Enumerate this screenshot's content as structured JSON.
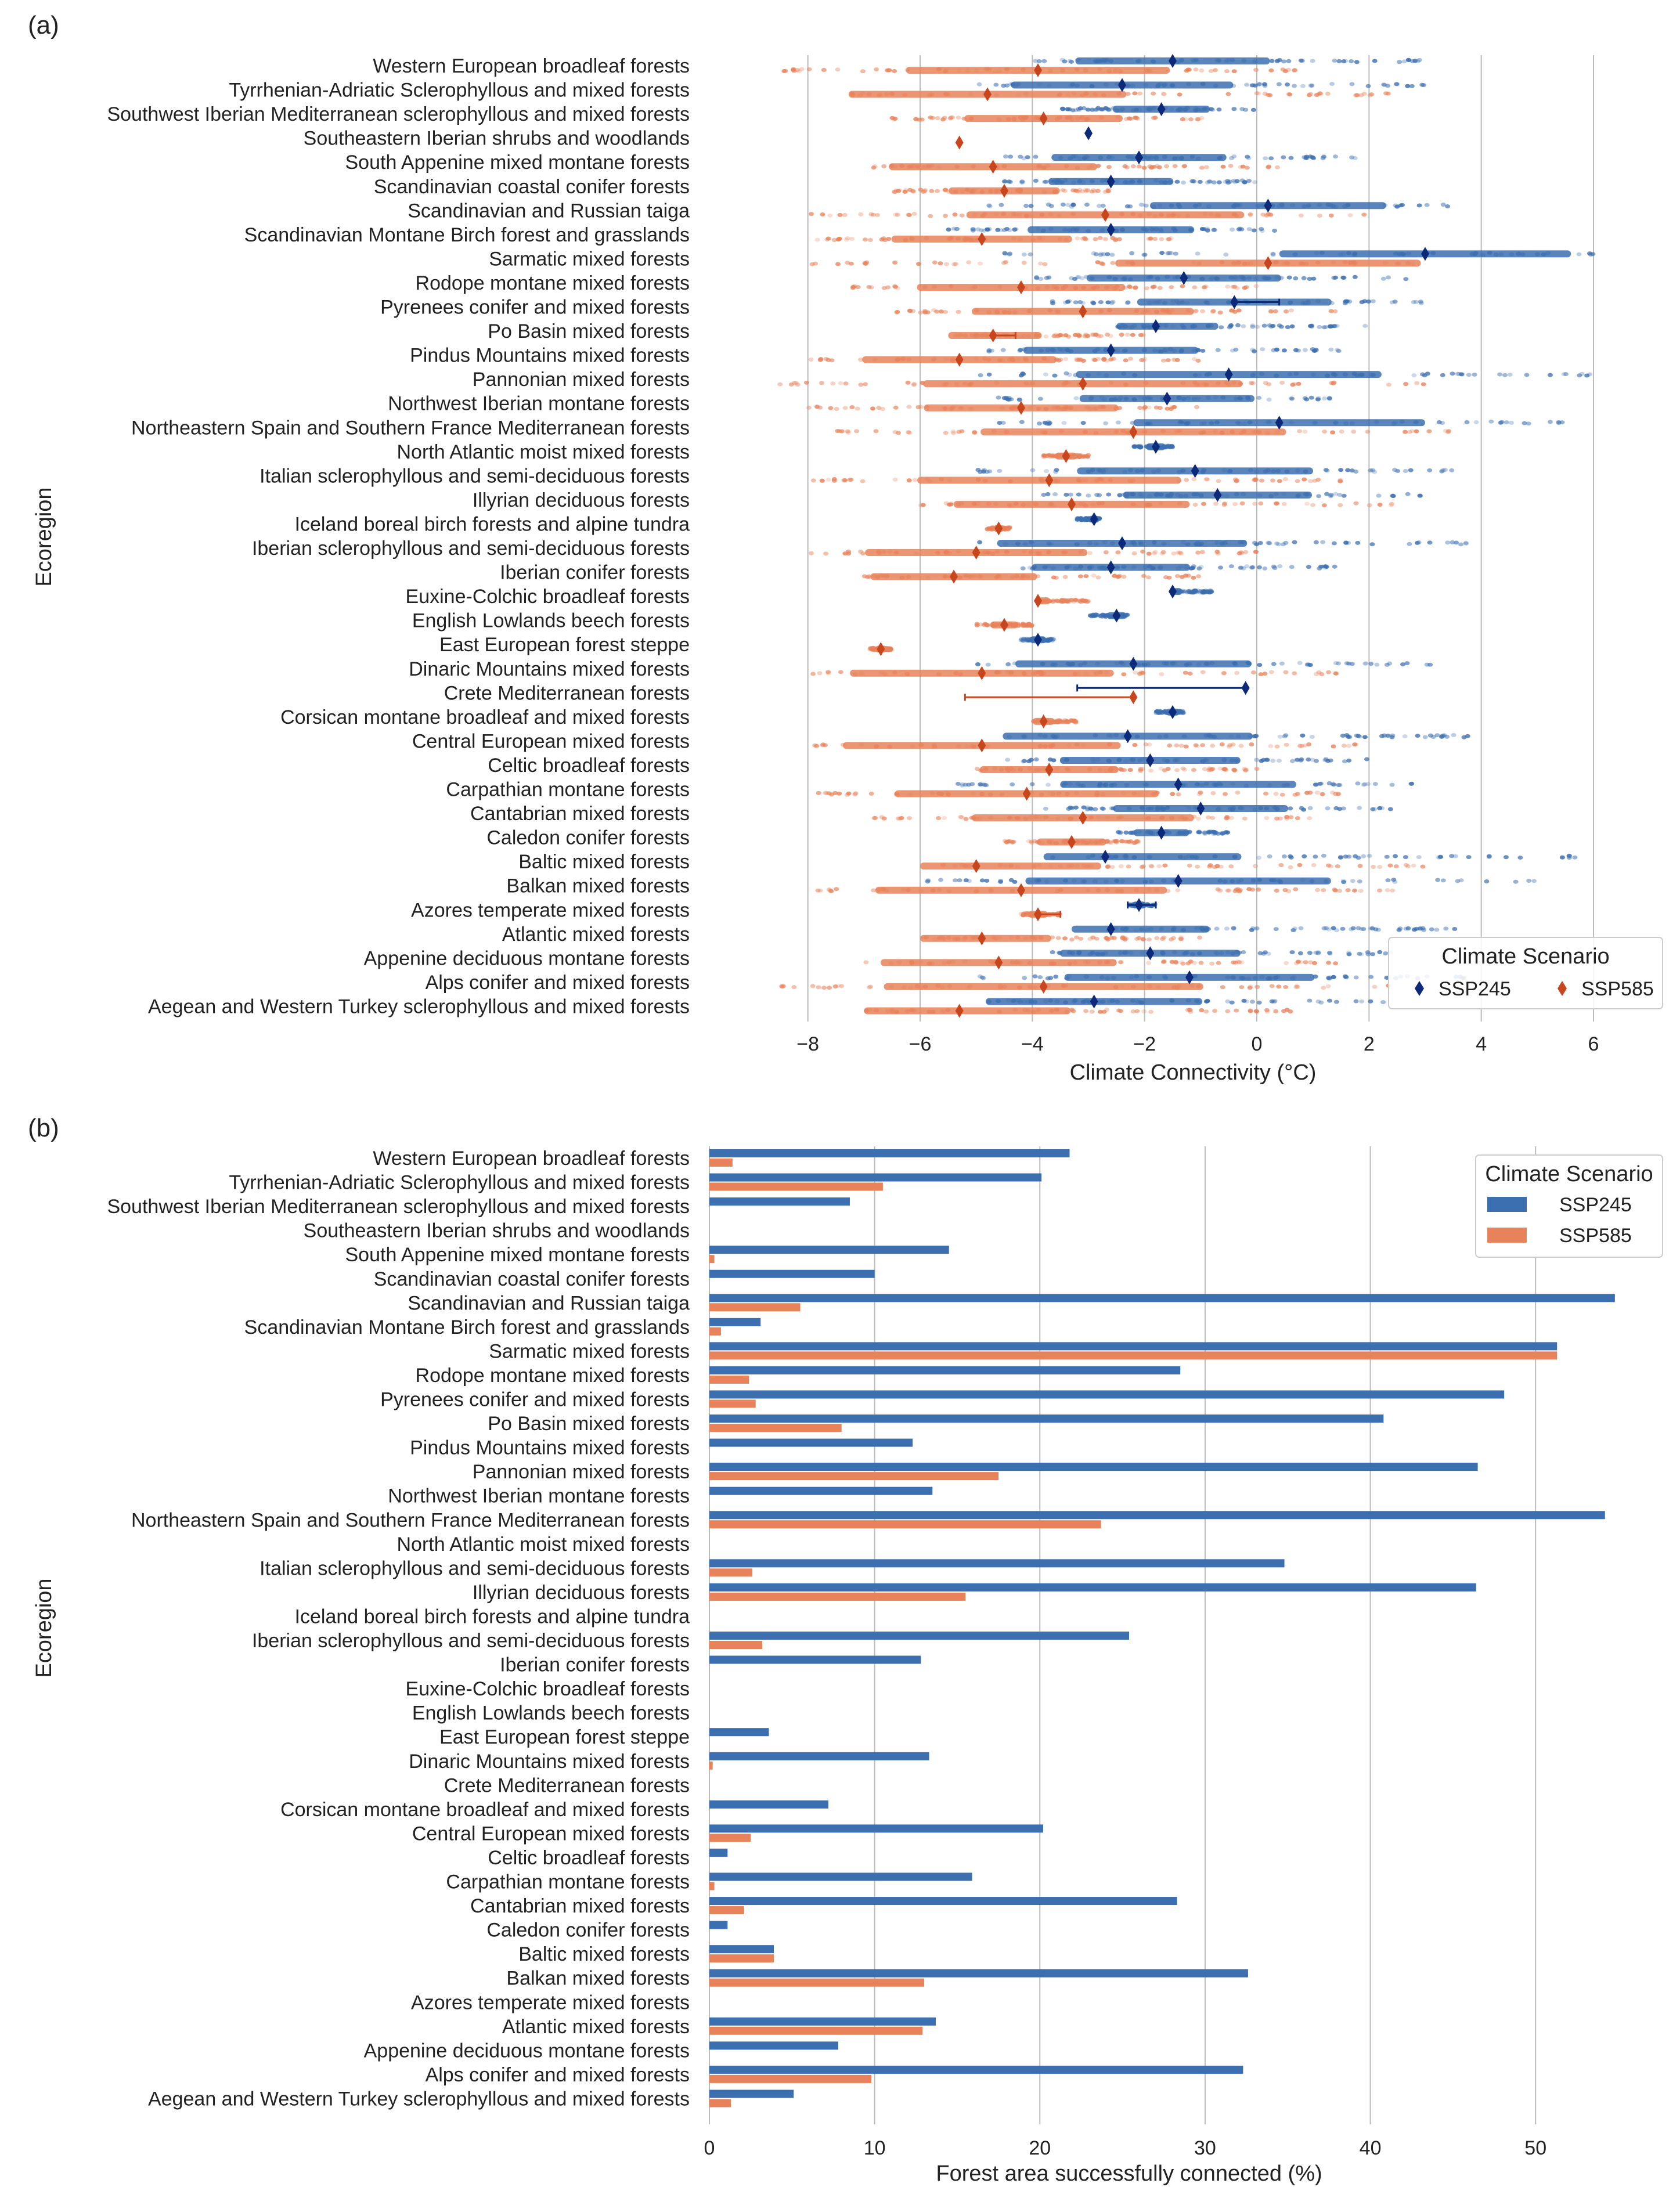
{
  "colors": {
    "ssp245_dark": "#0d2a7a",
    "ssp245_light": "#3c6fb0",
    "ssp585_dark": "#c8461e",
    "ssp585_light": "#e8825a",
    "grid": "#bbbbbb"
  },
  "chart_data": [
    {
      "panel": "(a)",
      "type": "scatter",
      "xlabel": "Climate Connectivity (°C)",
      "ylabel": "Ecoregion",
      "xlim": [
        -9,
        7.5
      ],
      "xticks": [
        "−8",
        "−6",
        "−4",
        "−2",
        "0",
        "2",
        "4",
        "6"
      ],
      "xtick_values": [
        -8,
        -6,
        -4,
        -2,
        0,
        2,
        4,
        6
      ],
      "grid": "vertical",
      "legend": {
        "title": "Climate Scenario",
        "entries": [
          "SSP245",
          "SSP585"
        ],
        "placement": "bottom-right"
      },
      "categories": [
        "Western European broadleaf forests",
        "Tyrrhenian-Adriatic Sclerophyllous and mixed forests",
        "Southwest Iberian Mediterranean sclerophyllous and mixed forests",
        "Southeastern Iberian shrubs and woodlands",
        "South Appenine mixed montane forests",
        "Scandinavian coastal conifer forests",
        "Scandinavian and Russian taiga",
        "Scandinavian Montane Birch forest and grasslands",
        "Sarmatic mixed forests",
        "Rodope montane mixed forests",
        "Pyrenees conifer and mixed forests",
        "Po Basin mixed forests",
        "Pindus Mountains mixed forests",
        "Pannonian mixed forests",
        "Northwest Iberian montane forests",
        "Northeastern Spain and Southern France Mediterranean forests",
        "North Atlantic moist mixed forests",
        "Italian sclerophyllous and semi-deciduous forests",
        "Illyrian deciduous forests",
        "Iceland boreal birch forests and alpine tundra",
        "Iberian sclerophyllous and semi-deciduous forests",
        "Iberian conifer forests",
        "Euxine-Colchic broadleaf forests",
        "English Lowlands beech forests",
        "East European forest steppe",
        "Dinaric Mountains mixed forests",
        "Crete Mediterranean forests",
        "Corsican montane broadleaf and mixed forests",
        "Central European mixed forests",
        "Celtic broadleaf forests",
        "Carpathian montane forests",
        "Cantabrian mixed forests",
        "Caledon conifer forests",
        "Baltic mixed forests",
        "Balkan mixed forests",
        "Azores temperate mixed forests",
        "Atlantic mixed forests",
        "Appenine deciduous montane forests",
        "Alps conifer and mixed forests",
        "Aegean and Western Turkey sclerophyllous and mixed forests"
      ],
      "series": [
        {
          "name": "SSP245",
          "mean": [
            -1.5,
            -2.4,
            -1.7,
            -3.0,
            -2.1,
            -2.6,
            0.2,
            -2.6,
            3.0,
            -1.3,
            -0.4,
            -1.8,
            -2.6,
            -0.5,
            -1.6,
            0.4,
            -1.8,
            -1.1,
            -0.7,
            -2.9,
            -2.4,
            -2.6,
            -1.5,
            -2.5,
            -3.9,
            -2.2,
            -0.2,
            -1.5,
            -2.3,
            -1.9,
            -1.4,
            -1.0,
            -1.7,
            -2.7,
            -1.4,
            -2.1,
            -2.6,
            -1.9,
            -1.2,
            -2.9
          ],
          "spread_low": [
            -4.0,
            -5.0,
            -3.5,
            -3.0,
            -4.5,
            -4.5,
            -5.0,
            -5.5,
            -4.5,
            -4.2,
            -4.0,
            -2.5,
            -4.8,
            -5.0,
            -4.8,
            -5.0,
            -2.2,
            -5.0,
            -3.8,
            -3.2,
            -5.0,
            -4.2,
            -1.5,
            -3.0,
            -4.2,
            -5.0,
            -0.2,
            -1.8,
            -5.0,
            -4.5,
            -5.5,
            -3.8,
            -2.5,
            -3.8,
            -6.0,
            -2.3,
            -3.3,
            -4.0,
            -5.0,
            -5.0
          ],
          "spread_high": [
            3.0,
            3.0,
            0.0,
            -3.0,
            1.8,
            0.0,
            3.5,
            0.5,
            6.0,
            2.8,
            3.0,
            2.0,
            1.5,
            6.0,
            1.5,
            5.5,
            -1.5,
            3.5,
            3.0,
            -2.8,
            4.0,
            1.5,
            -0.8,
            -2.3,
            -3.6,
            3.5,
            -0.2,
            -1.3,
            4.0,
            2.0,
            3.0,
            2.5,
            -0.5,
            6.0,
            5.0,
            -1.8,
            3.8,
            2.5,
            4.0,
            2.8
          ]
        },
        {
          "name": "SSP585",
          "mean": [
            -3.9,
            -4.8,
            -3.8,
            -5.3,
            -4.7,
            -4.5,
            -2.7,
            -4.9,
            0.2,
            -4.2,
            -3.1,
            -4.7,
            -5.3,
            -3.1,
            -4.2,
            -2.2,
            -3.4,
            -3.7,
            -3.3,
            -4.6,
            -5.0,
            -5.4,
            -3.9,
            -4.5,
            -6.7,
            -4.9,
            -2.2,
            -3.8,
            -4.9,
            -3.7,
            -4.1,
            -3.1,
            -3.3,
            -5.0,
            -4.2,
            -3.9,
            -4.9,
            -4.6,
            -3.8,
            -5.3
          ],
          "spread_low": [
            -8.5,
            -7.5,
            -6.5,
            -5.3,
            -7.0,
            -6.5,
            -8.0,
            -8.0,
            -8.0,
            -7.5,
            -6.5,
            -5.5,
            -8.0,
            -8.5,
            -8.0,
            -7.5,
            -3.8,
            -8.0,
            -6.0,
            -4.8,
            -8.0,
            -7.0,
            -3.9,
            -5.0,
            -6.9,
            -8.0,
            -2.2,
            -4.0,
            -8.0,
            -5.0,
            -8.0,
            -7.0,
            -4.5,
            -6.0,
            -8.0,
            -4.2,
            -6.0,
            -7.0,
            -8.5,
            -7.0
          ],
          "spread_high": [
            1.0,
            2.5,
            -0.8,
            -5.3,
            0.5,
            -2.5,
            2.0,
            -1.5,
            3.0,
            0.0,
            1.5,
            -2.0,
            -1.0,
            3.0,
            -1.0,
            3.5,
            -3.0,
            1.5,
            2.5,
            -4.4,
            0.0,
            -1.0,
            -3.0,
            -4.0,
            -6.5,
            1.5,
            -2.2,
            -3.2,
            2.0,
            0.0,
            1.5,
            1.0,
            -2.0,
            3.0,
            2.5,
            -3.5,
            -1.0,
            1.5,
            3.0,
            1.0
          ]
        }
      ],
      "error_bars": [
        {
          "category": "Crete Mediterranean forests",
          "series": "SSP245",
          "range": [
            -3.2,
            -0.2
          ]
        },
        {
          "category": "Crete Mediterranean forests",
          "series": "SSP585",
          "range": [
            -5.2,
            -2.2
          ]
        },
        {
          "category": "Pyrenees conifer and mixed forests",
          "series": "SSP245",
          "range": [
            -0.4,
            0.4
          ]
        },
        {
          "category": "Po Basin mixed forests",
          "series": "SSP585",
          "range": [
            -4.7,
            -4.3
          ]
        },
        {
          "category": "Azores temperate mixed forests",
          "series": "SSP245",
          "range": [
            -2.3,
            -1.8
          ]
        },
        {
          "category": "Azores temperate mixed forests",
          "series": "SSP585",
          "range": [
            -3.9,
            -3.5
          ]
        }
      ]
    },
    {
      "panel": "(b)",
      "type": "bar",
      "orientation": "horizontal",
      "xlabel": "Forest area successfully connected (%)",
      "ylabel": "Ecoregion",
      "xlim": [
        0,
        56
      ],
      "xticks": [
        "0",
        "10",
        "20",
        "30",
        "40",
        "50"
      ],
      "xtick_values": [
        0,
        10,
        20,
        30,
        40,
        50
      ],
      "grid": "vertical",
      "legend": {
        "title": "Climate Scenario",
        "entries": [
          "SSP245",
          "SSP585"
        ],
        "placement": "top-right"
      },
      "categories": [
        "Western European broadleaf forests",
        "Tyrrhenian-Adriatic Sclerophyllous and mixed forests",
        "Southwest Iberian Mediterranean sclerophyllous and mixed forests",
        "Southeastern Iberian shrubs and woodlands",
        "South Appenine mixed montane forests",
        "Scandinavian coastal conifer forests",
        "Scandinavian and Russian taiga",
        "Scandinavian Montane Birch forest and grasslands",
        "Sarmatic mixed forests",
        "Rodope montane mixed forests",
        "Pyrenees conifer and mixed forests",
        "Po Basin mixed forests",
        "Pindus Mountains mixed forests",
        "Pannonian mixed forests",
        "Northwest Iberian montane forests",
        "Northeastern Spain and Southern France Mediterranean forests",
        "North Atlantic moist mixed forests",
        "Italian sclerophyllous and semi-deciduous forests",
        "Illyrian deciduous forests",
        "Iceland boreal birch forests and alpine tundra",
        "Iberian sclerophyllous and semi-deciduous forests",
        "Iberian conifer forests",
        "Euxine-Colchic broadleaf forests",
        "English Lowlands beech forests",
        "East European forest steppe",
        "Dinaric Mountains mixed forests",
        "Crete Mediterranean forests",
        "Corsican montane broadleaf and mixed forests",
        "Central European mixed forests",
        "Celtic broadleaf forests",
        "Carpathian montane forests",
        "Cantabrian mixed forests",
        "Caledon conifer forests",
        "Baltic mixed forests",
        "Balkan mixed forests",
        "Azores temperate mixed forests",
        "Atlantic mixed forests",
        "Appenine deciduous montane forests",
        "Alps conifer and mixed forests",
        "Aegean and Western Turkey sclerophyllous and mixed forests"
      ],
      "series": [
        {
          "name": "SSP245",
          "values": [
            21.8,
            20.1,
            8.5,
            0.0,
            14.5,
            10.0,
            54.8,
            3.1,
            51.3,
            28.5,
            48.1,
            40.8,
            12.3,
            46.5,
            13.5,
            54.2,
            0.0,
            34.8,
            46.4,
            0.0,
            25.4,
            12.8,
            0.0,
            0.0,
            3.6,
            13.3,
            0.0,
            7.2,
            20.2,
            1.1,
            15.9,
            28.3,
            1.1,
            3.9,
            32.6,
            0.0,
            13.7,
            7.8,
            32.3,
            5.1
          ]
        },
        {
          "name": "SSP585",
          "values": [
            1.4,
            10.5,
            0.0,
            0.0,
            0.3,
            0.0,
            5.5,
            0.7,
            51.3,
            2.4,
            2.8,
            8.0,
            0.0,
            17.5,
            0.0,
            23.7,
            0.0,
            2.6,
            15.5,
            0.0,
            3.2,
            0.0,
            0.0,
            0.0,
            0.0,
            0.2,
            0.0,
            0.0,
            2.5,
            0.0,
            0.3,
            2.1,
            0.0,
            3.9,
            13.0,
            0.0,
            12.9,
            0.0,
            9.8,
            1.3
          ]
        }
      ]
    }
  ]
}
